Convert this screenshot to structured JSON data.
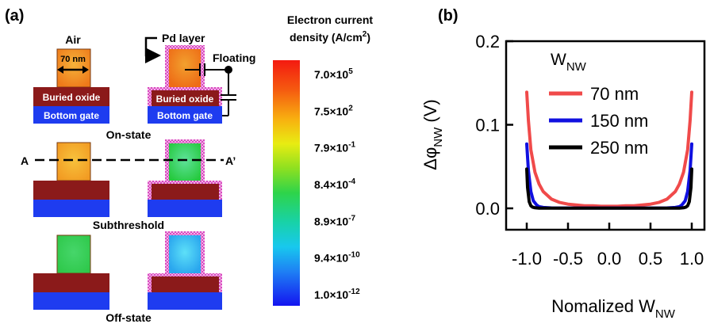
{
  "panel_a": {
    "label": "(a)",
    "air_label": "Air",
    "width_label": "70 nm",
    "pd_label": "Pd layer",
    "floating_label": "Floating",
    "buried_oxide": "Buried oxide",
    "bottom_gate": "Bottom gate",
    "on_state": "On-state",
    "subthreshold": "Subthreshold",
    "off_state": "Off-state",
    "cut_a": "A",
    "cut_a2": "A’",
    "colorbar_title_1": "Electron current",
    "colorbar_title_2": "density (A/cm",
    "colorbar_title_sup": "2",
    "colorbar_title_end": ")",
    "ticks": [
      {
        "mant": "7.0",
        "exp": "5"
      },
      {
        "mant": "7.5",
        "exp": "2"
      },
      {
        "mant": "7.9",
        "exp": "-1"
      },
      {
        "mant": "8.4",
        "exp": "-4"
      },
      {
        "mant": "8.9",
        "exp": "-7"
      },
      {
        "mant": "9.4",
        "exp": "-10"
      },
      {
        "mant": "1.0",
        "exp": "-12"
      }
    ],
    "colors": {
      "buried_oxide": "#8b1a1a",
      "bottom_gate": "#1e3cf0",
      "pd_layer": "#e858c8",
      "orange": "#f08a1c",
      "yellow_orange": "#f5a623",
      "green": "#2ed15a",
      "cyan": "#3fc6f0"
    }
  },
  "chart_data": {
    "type": "line",
    "panel_label": "(b)",
    "xlabel": "Nomalized W",
    "xlabel_sub": "NW",
    "ylabel": "Δφ",
    "ylabel_sub": "NW",
    "ylabel_unit": "(V)",
    "xlim": [
      -1.0,
      1.0
    ],
    "ylim": [
      0.0,
      0.2
    ],
    "x_ticks": [
      "-1.0",
      "-0.5",
      "0.0",
      "0.5",
      "1.0"
    ],
    "y_ticks": [
      "0.0",
      "0.1",
      "0.2"
    ],
    "legend_title": "W",
    "legend_title_sub": "NW",
    "legend_position": "top-right",
    "series": [
      {
        "name": "70 nm",
        "color": "#f04a4a",
        "x": [
          -1.0,
          -0.98,
          -0.95,
          -0.9,
          -0.85,
          -0.8,
          -0.7,
          -0.6,
          -0.5,
          -0.4,
          -0.3,
          -0.2,
          -0.1,
          0.0,
          0.1,
          0.2,
          0.3,
          0.4,
          0.5,
          0.6,
          0.7,
          0.8,
          0.85,
          0.9,
          0.95,
          0.98,
          1.0
        ],
        "y": [
          0.139,
          0.105,
          0.07,
          0.043,
          0.029,
          0.02,
          0.011,
          0.007,
          0.005,
          0.004,
          0.003,
          0.003,
          0.0025,
          0.0025,
          0.0025,
          0.003,
          0.003,
          0.004,
          0.005,
          0.007,
          0.011,
          0.02,
          0.029,
          0.043,
          0.07,
          0.105,
          0.139
        ]
      },
      {
        "name": "150 nm",
        "color": "#1010e0",
        "x": [
          -1.0,
          -0.98,
          -0.95,
          -0.92,
          -0.88,
          -0.85,
          -0.8,
          -0.7,
          -0.5,
          0.0,
          0.5,
          0.7,
          0.8,
          0.85,
          0.88,
          0.92,
          0.95,
          0.98,
          1.0
        ],
        "y": [
          0.077,
          0.045,
          0.02,
          0.009,
          0.004,
          0.002,
          0.001,
          0.0005,
          0.0004,
          0.0004,
          0.0004,
          0.0005,
          0.001,
          0.002,
          0.004,
          0.009,
          0.02,
          0.045,
          0.077
        ]
      },
      {
        "name": "250 nm",
        "color": "#000000",
        "x": [
          -1.0,
          -0.99,
          -0.97,
          -0.95,
          -0.93,
          -0.9,
          -0.85,
          -0.7,
          0.0,
          0.7,
          0.85,
          0.9,
          0.93,
          0.95,
          0.97,
          0.99,
          1.0
        ],
        "y": [
          0.047,
          0.025,
          0.008,
          0.003,
          0.0015,
          0.0007,
          0.0003,
          0.0002,
          0.0002,
          0.0002,
          0.0003,
          0.0007,
          0.0015,
          0.003,
          0.008,
          0.025,
          0.047
        ]
      }
    ]
  }
}
